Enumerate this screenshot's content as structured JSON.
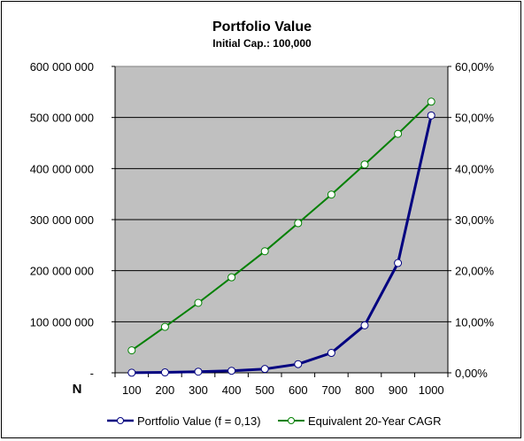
{
  "chart_data": {
    "type": "line",
    "title": "Portfolio Value",
    "subtitle": "Initial Cap.: 100,000",
    "xlabel": "N",
    "x": [
      100,
      200,
      300,
      400,
      500,
      600,
      700,
      800,
      900,
      1000
    ],
    "y_left": {
      "min": 0,
      "max": 600000000,
      "ticks": [
        0,
        100000000,
        200000000,
        300000000,
        400000000,
        500000000,
        600000000
      ],
      "tick_labels": [
        "-",
        "100 000 000",
        "200 000 000",
        "300 000 000",
        "400 000 000",
        "500 000 000",
        "600 000 000"
      ]
    },
    "y_right": {
      "min": 0,
      "max": 0.6,
      "ticks": [
        0,
        0.1,
        0.2,
        0.3,
        0.4,
        0.5,
        0.6
      ],
      "tick_labels": [
        "0,00%",
        "10,00%",
        "20,00%",
        "30,00%",
        "40,00%",
        "50,00%",
        "60,00%"
      ]
    },
    "grid": true,
    "plot_background": "#c0c0c0",
    "legend_position": "bottom",
    "series": [
      {
        "name": "Portfolio Value (f = 0,13)",
        "axis": "left",
        "color": "#000080",
        "values": [
          200000,
          800000,
          2200000,
          4000000,
          7500000,
          17000000,
          39000000,
          93000000,
          215000000,
          504000000
        ]
      },
      {
        "name": "Equivalent 20-Year CAGR",
        "axis": "right",
        "color": "#008000",
        "values": [
          0.044,
          0.09,
          0.137,
          0.187,
          0.238,
          0.293,
          0.349,
          0.408,
          0.468,
          0.531
        ]
      }
    ]
  }
}
